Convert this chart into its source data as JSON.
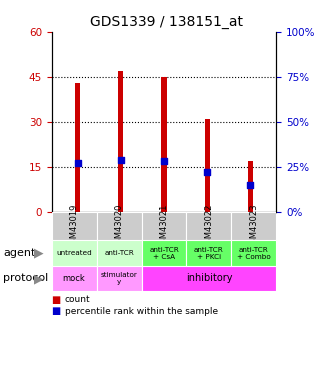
{
  "title": "GDS1339 / 138151_at",
  "samples": [
    "GSM43019",
    "GSM43020",
    "GSM43021",
    "GSM43022",
    "GSM43023"
  ],
  "counts": [
    43,
    47,
    45,
    31,
    17
  ],
  "percentile_ranks": [
    27,
    29,
    28,
    22,
    15
  ],
  "left_yaxis": {
    "min": 0,
    "max": 60,
    "ticks": [
      0,
      15,
      30,
      45,
      60
    ],
    "color": "#cc0000"
  },
  "right_yaxis": {
    "min": 0,
    "max": 100,
    "ticks": [
      0,
      25,
      50,
      75,
      100
    ],
    "color": "#0000cc"
  },
  "bar_color": "#cc0000",
  "dot_color": "#0000cc",
  "agent_labels": [
    "untreated",
    "anti-TCR",
    "anti-TCR\n+ CsA",
    "anti-TCR\n+ PKCi",
    "anti-TCR\n+ Combo"
  ],
  "agent_bg_light": "#ccffcc",
  "agent_bg_bright": "#66ff66",
  "sample_bg": "#cccccc",
  "protocol_mock_bg": "#ff99ff",
  "protocol_stim_bg": "#ff99ff",
  "protocol_inhib_bg": "#ff44ff",
  "legend_count_color": "#cc0000",
  "legend_pct_color": "#0000cc"
}
